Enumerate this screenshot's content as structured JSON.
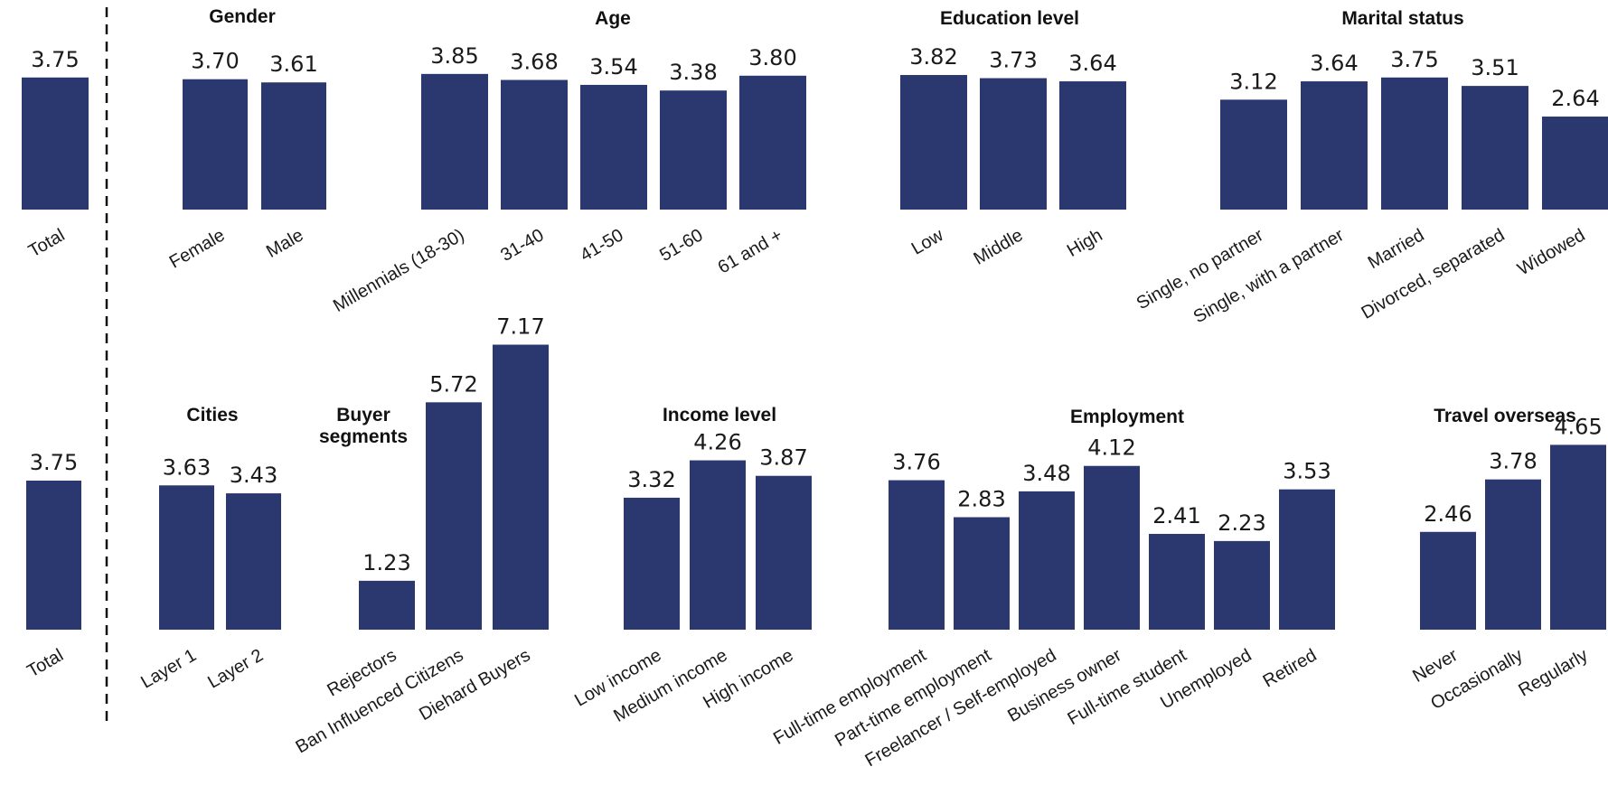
{
  "colors": {
    "bar": "#2b3870",
    "text": "#1a1a1a"
  },
  "chart_data": [
    {
      "type": "bar",
      "title": "",
      "categories": [
        "Total"
      ],
      "values": [
        3.75
      ]
    },
    {
      "type": "bar",
      "title": "Gender",
      "categories": [
        "Female",
        "Male"
      ],
      "values": [
        3.7,
        3.61
      ]
    },
    {
      "type": "bar",
      "title": "Age",
      "categories": [
        "Millennials (18-30)",
        "31-40",
        "41-50",
        "51-60",
        "61 and +"
      ],
      "values": [
        3.85,
        3.68,
        3.54,
        3.38,
        3.8
      ]
    },
    {
      "type": "bar",
      "title": "Education level",
      "categories": [
        "Low",
        "Middle",
        "High"
      ],
      "values": [
        3.82,
        3.73,
        3.64
      ]
    },
    {
      "type": "bar",
      "title": "Marital status",
      "categories": [
        "Single, no partner",
        "Single, with a partner",
        "Married",
        "Divorced, separated",
        "Widowed"
      ],
      "values": [
        3.12,
        3.64,
        3.75,
        3.51,
        2.64
      ]
    },
    {
      "type": "bar",
      "title": "",
      "categories": [
        "Total"
      ],
      "values": [
        3.75
      ]
    },
    {
      "type": "bar",
      "title": "Cities",
      "categories": [
        "Layer 1",
        "Layer 2"
      ],
      "values": [
        3.63,
        3.43
      ]
    },
    {
      "type": "bar",
      "title": "Buyer\nsegments",
      "categories": [
        "Rejectors",
        "Ban Influenced Citizens",
        "Diehard Buyers"
      ],
      "values": [
        1.23,
        5.72,
        7.17
      ]
    },
    {
      "type": "bar",
      "title": "Income level",
      "categories": [
        "Low income",
        "Medium income",
        "High income"
      ],
      "values": [
        3.32,
        4.26,
        3.87
      ]
    },
    {
      "type": "bar",
      "title": "Employment",
      "categories": [
        "Full-time employment",
        "Part-time employment",
        "Freelancer / Self-employed",
        "Business owner",
        "Full-time student",
        "Unemployed",
        "Retired"
      ],
      "values": [
        3.76,
        2.83,
        3.48,
        4.12,
        2.41,
        2.23,
        3.53
      ]
    },
    {
      "type": "bar",
      "title": "Travel overseas",
      "categories": [
        "Never",
        "Occasionally",
        "Regularly"
      ],
      "values": [
        2.46,
        3.78,
        4.65
      ]
    }
  ]
}
